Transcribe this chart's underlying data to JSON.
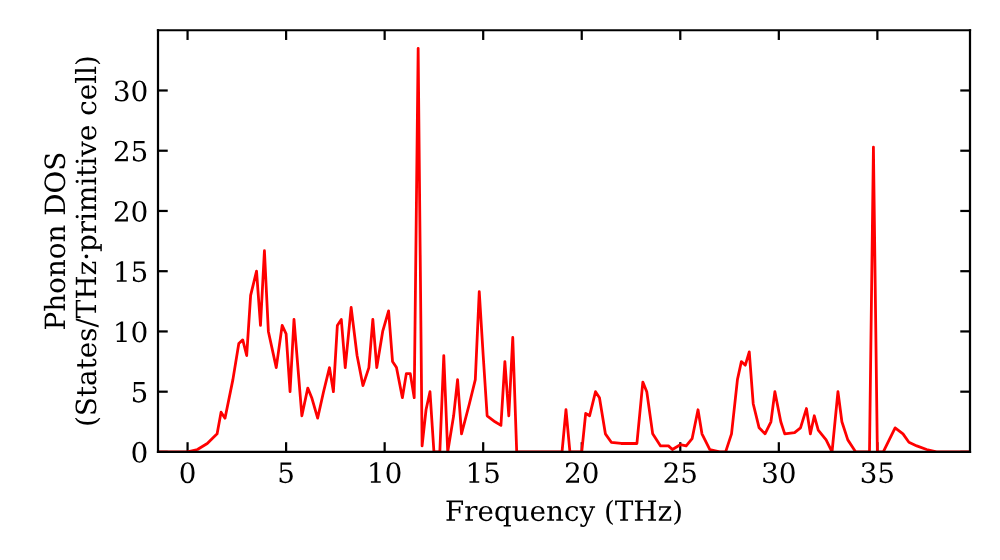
{
  "chart_data": {
    "type": "line",
    "xlabel": "Frequency (THz)",
    "ylabel": "Phonon DOS\n(States/THz·primitive cell)",
    "xlim": [
      -1.5,
      39.7
    ],
    "ylim": [
      0,
      35
    ],
    "xticks": [
      0,
      5,
      10,
      15,
      20,
      25,
      30,
      35
    ],
    "yticks": [
      0,
      5,
      10,
      15,
      20,
      25,
      30
    ],
    "grid": false,
    "legend": false,
    "marker": "none",
    "line_style": "solid",
    "series": [
      {
        "color": "#ff0000",
        "x": [
          -1.5,
          0,
          0.5,
          1,
          1.5,
          1.7,
          1.9,
          2.3,
          2.6,
          2.8,
          3.0,
          3.2,
          3.5,
          3.7,
          3.9,
          4.1,
          4.5,
          4.8,
          5.0,
          5.2,
          5.4,
          5.8,
          6.1,
          6.3,
          6.6,
          6.9,
          7.2,
          7.4,
          7.6,
          7.8,
          8.0,
          8.3,
          8.6,
          8.9,
          9.2,
          9.4,
          9.6,
          9.9,
          10.2,
          10.4,
          10.6,
          10.9,
          11.1,
          11.3,
          11.5,
          11.7,
          11.9,
          12.1,
          12.3,
          12.5,
          12.8,
          13.0,
          13.2,
          13.5,
          13.7,
          13.9,
          14.3,
          14.6,
          14.8,
          15.0,
          15.2,
          15.6,
          15.9,
          16.1,
          16.3,
          16.5,
          16.7,
          17,
          19,
          19.2,
          19.4,
          20.0,
          20.2,
          20.4,
          20.7,
          20.9,
          21.2,
          21.5,
          22,
          22.8,
          23.1,
          23.3,
          23.6,
          24.0,
          24.4,
          24.6,
          25.0,
          25.3,
          25.6,
          25.9,
          26.1,
          26.5,
          27.0,
          27.3,
          27.6,
          27.9,
          28.1,
          28.3,
          28.5,
          28.7,
          29.0,
          29.3,
          29.6,
          29.8,
          30.1,
          30.3,
          30.8,
          31.1,
          31.4,
          31.6,
          31.8,
          32.0,
          32.4,
          32.7,
          33.0,
          33.2,
          33.5,
          33.9,
          34.6,
          34.8,
          35.0,
          35.3,
          35.6,
          35.9,
          36.3,
          36.6,
          37,
          37.5,
          38,
          39.7
        ],
        "values": [
          0,
          0,
          0.2,
          0.7,
          1.5,
          3.3,
          2.8,
          6,
          9,
          9.3,
          8,
          13,
          15,
          10.5,
          16.7,
          10,
          7,
          10.5,
          9.8,
          5,
          11,
          3,
          5.3,
          4.5,
          2.8,
          5,
          7,
          5,
          10.5,
          11,
          7,
          12,
          8,
          5.5,
          7,
          11,
          7,
          10,
          11.7,
          7.5,
          7,
          4.5,
          6.5,
          6.5,
          4.5,
          33.5,
          0.5,
          3.5,
          5,
          0,
          0,
          8,
          0,
          3,
          6,
          1.5,
          4,
          6,
          13.3,
          8,
          3,
          2.5,
          2.2,
          7.5,
          3,
          9.5,
          0,
          0,
          0,
          3.5,
          0,
          0,
          3.2,
          3,
          5,
          4.5,
          1.5,
          0.8,
          0.7,
          0.7,
          5.8,
          5,
          1.5,
          0.5,
          0.5,
          0.2,
          0.6,
          0.5,
          1.1,
          3.5,
          1.5,
          0.2,
          0,
          0,
          1.5,
          6,
          7.5,
          7.2,
          8.3,
          4,
          2,
          1.5,
          2.5,
          5,
          2.5,
          1.5,
          1.6,
          2,
          3.6,
          1.5,
          3,
          1.8,
          1,
          0,
          5,
          2.5,
          1,
          0,
          0,
          25.3,
          0,
          0,
          1,
          2,
          1.5,
          0.8,
          0.5,
          0.2,
          0,
          0
        ]
      }
    ]
  }
}
